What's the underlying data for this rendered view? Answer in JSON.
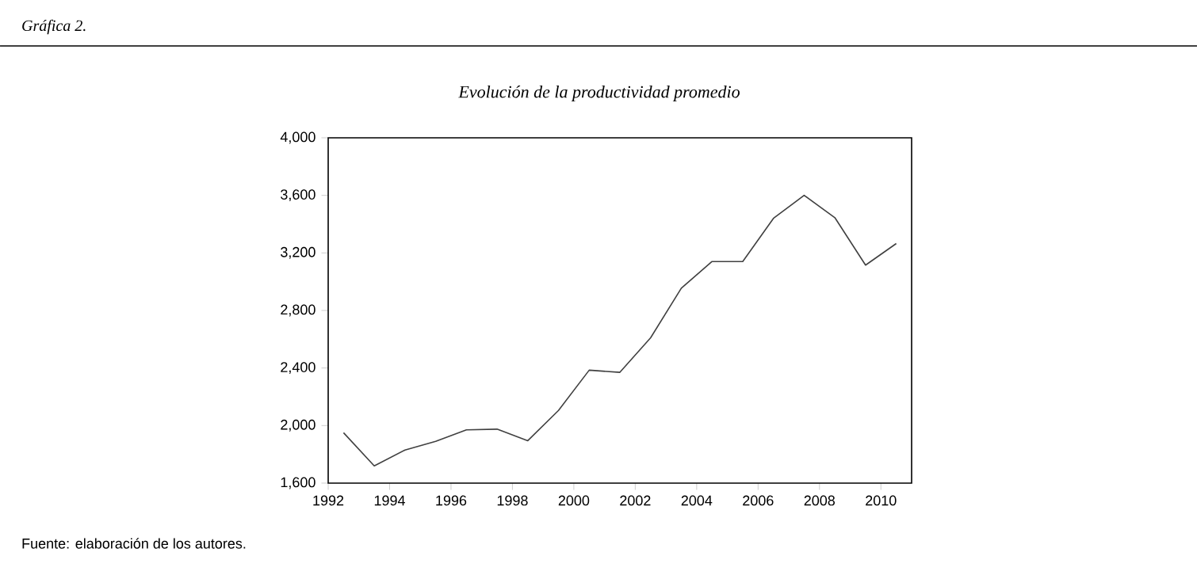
{
  "chart_data": {
    "type": "line",
    "title": "*Evolución de la productividad promedio*",
    "annotations": [
      "*Gráfica 2.*",
      "Fuente: elaboración de los autores."
    ],
    "x": [
      "1992-07",
      "1993-07",
      "1994-07",
      "1995-07",
      "1996-07",
      "1997-07",
      "1998-07",
      "1999-07",
      "2000-07",
      "2001-07",
      "2002-07",
      "2003-07",
      "2004-07",
      "2005-07",
      "2006-07",
      "2007-07",
      "2008-07",
      "2009-07",
      "2010-07"
    ],
    "series": [
      {
        "color": "#404040",
        "values": [
          1950,
          1720,
          1830,
          1890,
          1970,
          1975,
          1895,
          2105,
          2385,
          2370,
          2610,
          2955,
          3140,
          3140,
          3440,
          3600,
          3445,
          3115,
          3265
        ]
      }
    ],
    "xlim": [
      "1992",
      "2011"
    ],
    "xticks": [
      "1992",
      "1994",
      "1996",
      "1998",
      "2000",
      "2002",
      "2004",
      "2006",
      "2008",
      "2010"
    ],
    "ylim": [
      1600,
      4000
    ],
    "yticks": [
      {
        "value": 1600,
        "label": "1,600"
      },
      {
        "value": 2000,
        "label": "2,000"
      },
      {
        "value": 2400,
        "label": "2,400"
      },
      {
        "value": 2800,
        "label": "2,800"
      },
      {
        "value": 3200,
        "label": "3,200"
      },
      {
        "value": 3600,
        "label": "3,600"
      },
      {
        "value": 4000,
        "label": "4,000"
      }
    ],
    "grid": false,
    "marker": "none",
    "line_style": "solid"
  }
}
